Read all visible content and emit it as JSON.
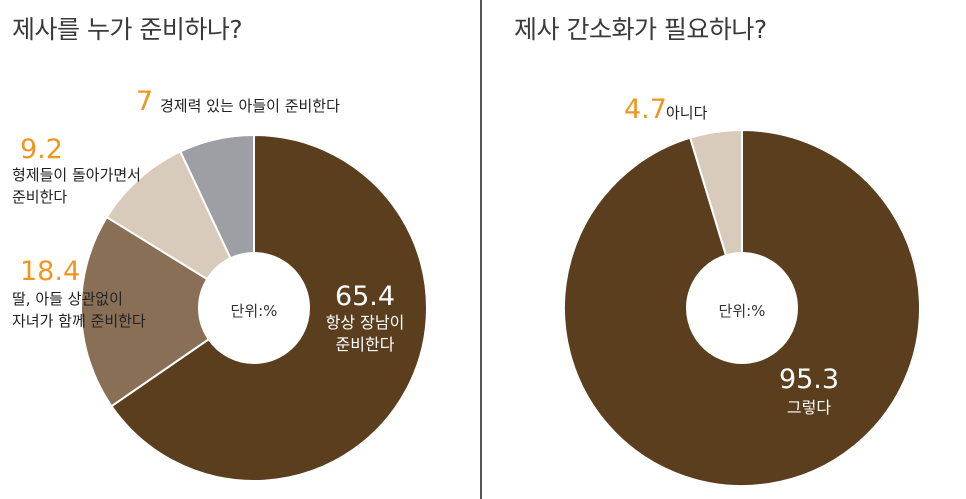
{
  "chart_data": [
    {
      "type": "pie",
      "title": "제사를 누가 준비하나?",
      "unit_label": "단위:%",
      "categories": [
        "항상 장남이 준비한다",
        "딸, 아들 상관없이 자녀가 함께 준비한다",
        "형제들이 돌아가면서 준비한다",
        "경제력 있는 아들이 준비한다"
      ],
      "values": [
        65.4,
        18.4,
        9.2,
        7
      ],
      "value_labels": [
        "65.4",
        "18.4",
        "9.2",
        "7"
      ],
      "label_lines": [
        [
          "항상 장남이",
          "준비한다"
        ],
        [
          "딸, 아들 상관없이",
          "자녀가 함께 준비한다"
        ],
        [
          "형제들이 돌아가면서",
          "준비한다"
        ],
        [
          "경제력 있는 아들이 준비한다"
        ]
      ],
      "colors": [
        "#5b3e1e",
        "#8a6f57",
        "#d8cbbb",
        "#9d9fa4"
      ]
    },
    {
      "type": "pie",
      "title": "제사 간소화가 필요하나?",
      "unit_label": "단위:%",
      "categories": [
        "그렇다",
        "아니다"
      ],
      "values": [
        95.3,
        4.7
      ],
      "value_labels": [
        "95.3",
        "4.7"
      ],
      "label_lines": [
        [
          "그렇다"
        ],
        [
          "아니다"
        ]
      ],
      "colors": [
        "#5b3e1e",
        "#d8cbbb"
      ]
    }
  ]
}
